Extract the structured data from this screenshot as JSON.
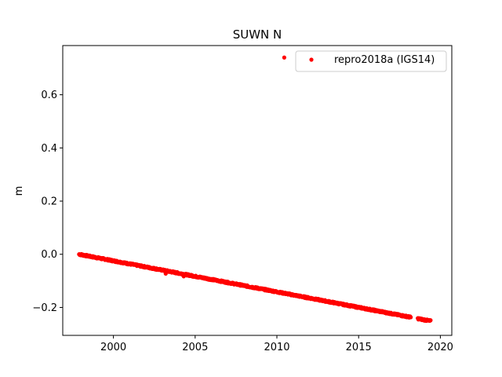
{
  "chart_data": {
    "type": "scatter",
    "title": "SUWN N",
    "xlabel": "",
    "ylabel": "m",
    "xlim": [
      1996.9,
      2020.7
    ],
    "ylim": [
      -0.305,
      0.785
    ],
    "xticks": [
      2000,
      2005,
      2010,
      2015,
      2020
    ],
    "yticks": [
      -0.2,
      0.0,
      0.2,
      0.4,
      0.6
    ],
    "ytick_labels": [
      "−0.2",
      "0.0",
      "0.2",
      "0.4",
      "0.6"
    ],
    "grid": false,
    "legend_position": "upper right",
    "series": [
      {
        "name": "repro2018a (IGS14)",
        "color": "#ff0000",
        "marker": "circle",
        "trend": {
          "x": [
            1997.9,
            2019.4
          ],
          "y": [
            0.0,
            -0.251
          ]
        },
        "gaps": [
          [
            2018.2,
            2018.6
          ]
        ],
        "points": [
          {
            "x": 2010.45,
            "y": 0.74
          },
          {
            "x": 2003.2,
            "y": -0.073
          },
          {
            "x": 2004.3,
            "y": -0.083
          }
        ]
      }
    ]
  }
}
